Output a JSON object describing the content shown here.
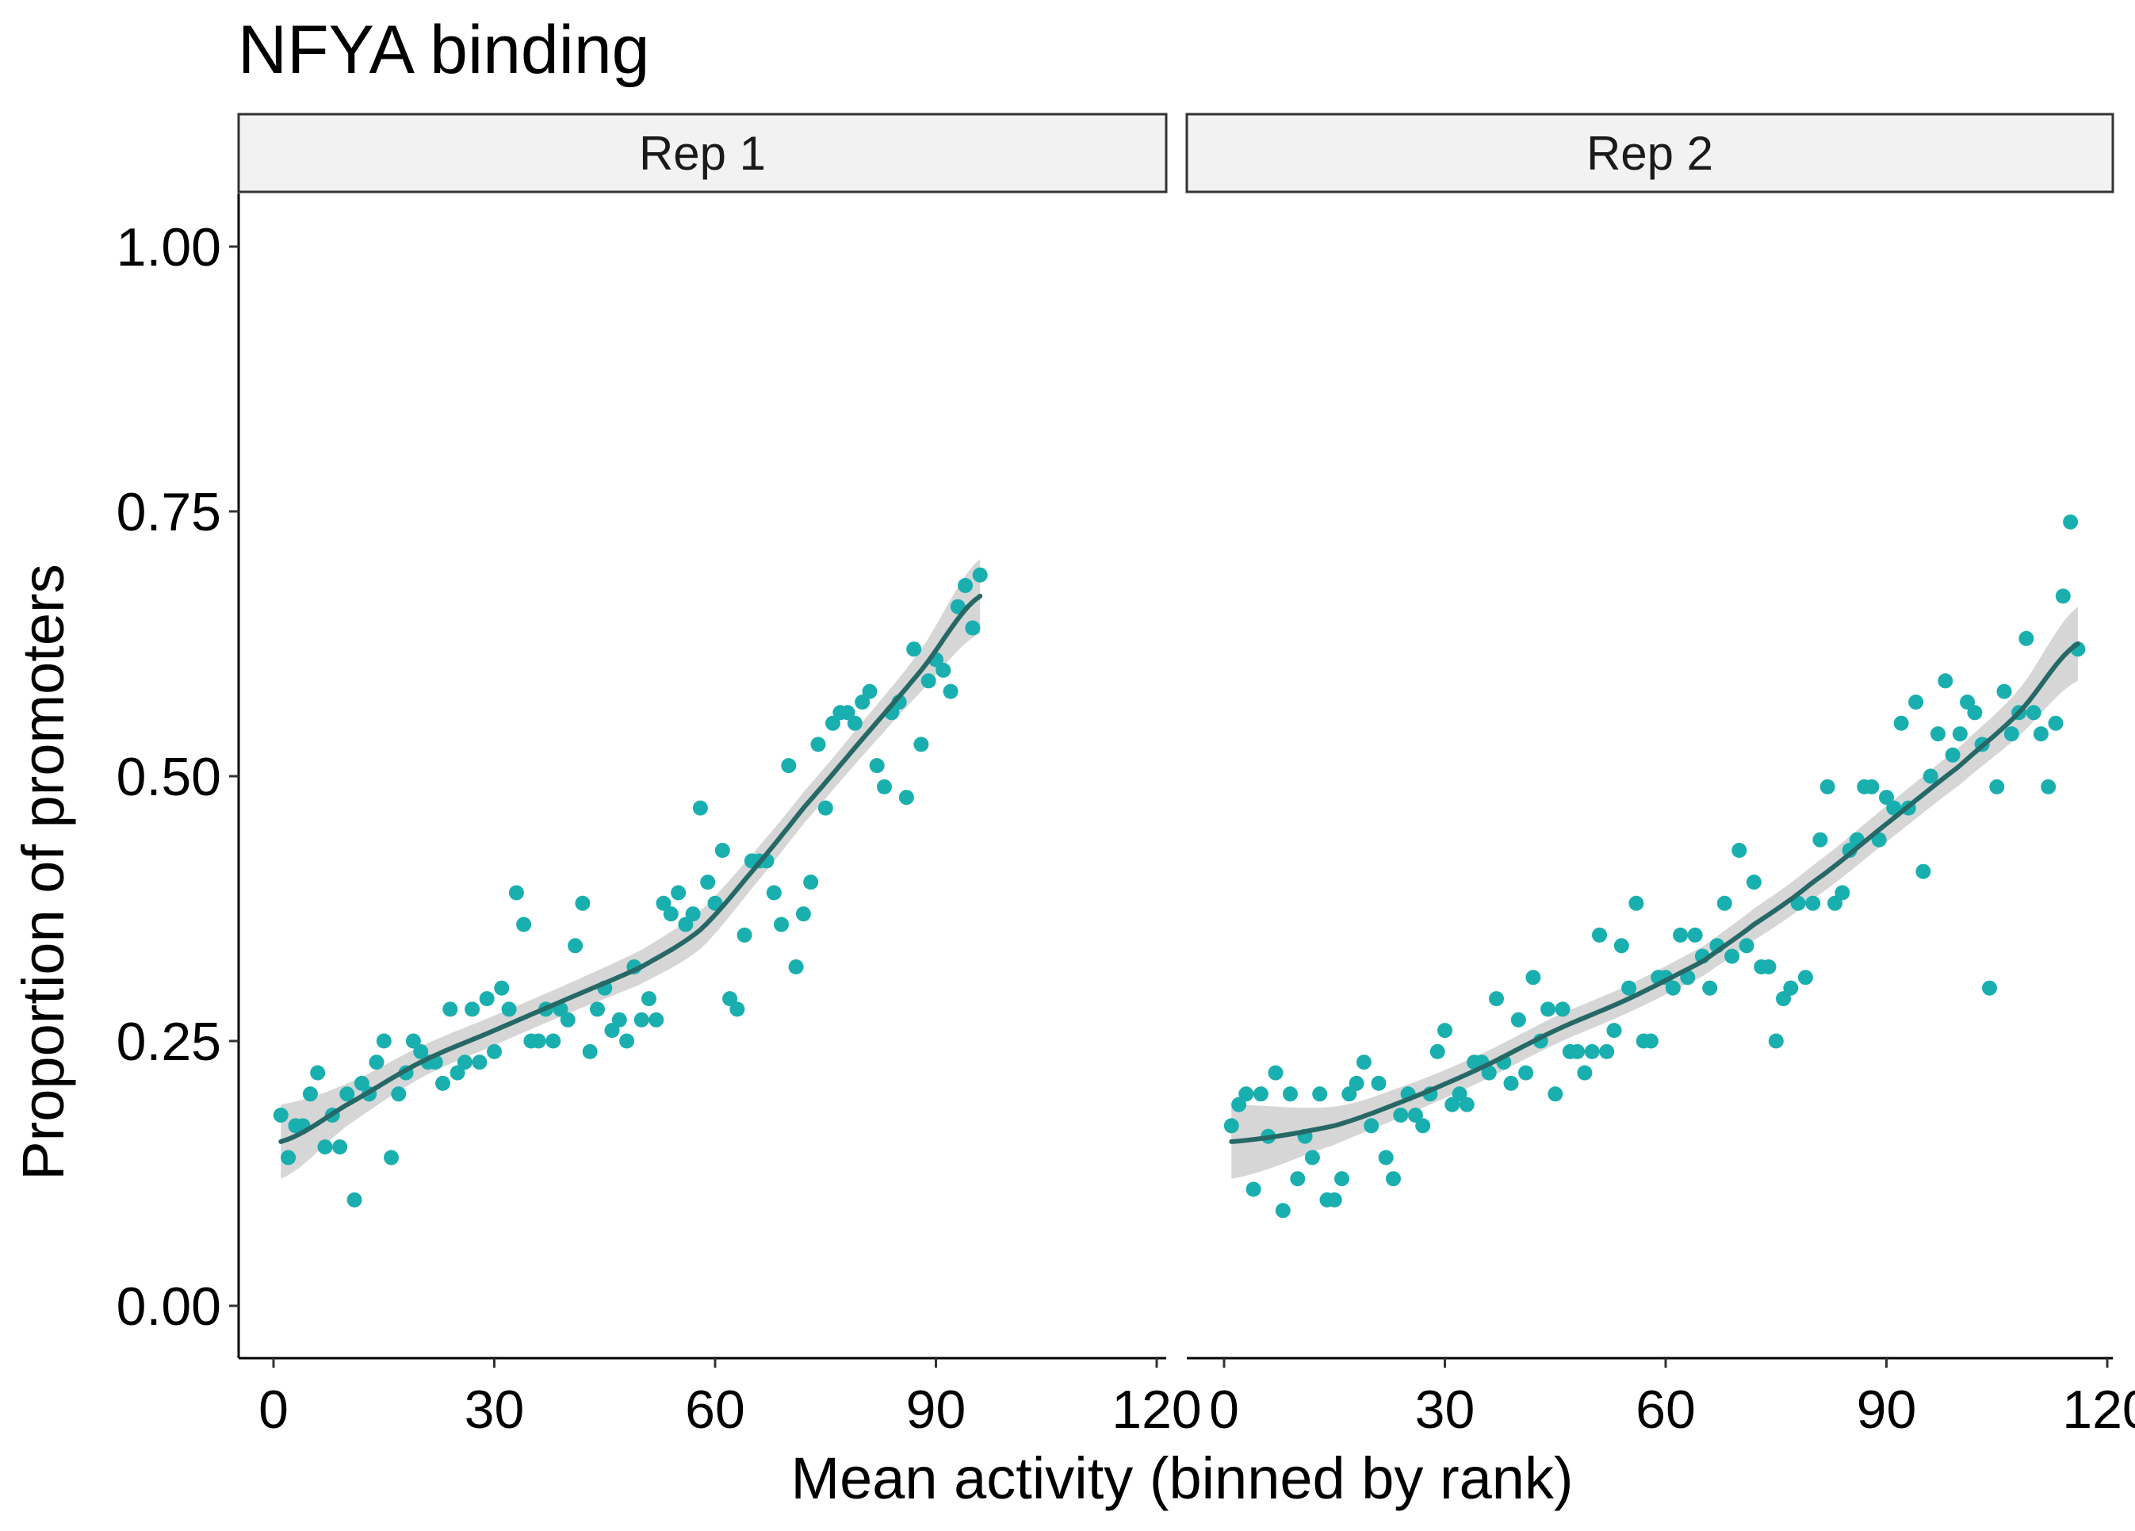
{
  "chart_data": {
    "type": "scatter",
    "title": "NFYA binding",
    "xlabel": "Mean activity (binned by rank)",
    "ylabel": "Proportion of promoters",
    "xlim": [
      -5,
      120
    ],
    "ylim": [
      -0.05,
      1.05
    ],
    "x_ticks": [
      0,
      30,
      60,
      90,
      120
    ],
    "x_tick_labels": [
      "0",
      "30",
      "60",
      "90",
      "120"
    ],
    "y_ticks": [
      0,
      0.25,
      0.5,
      0.75,
      1.0
    ],
    "y_tick_labels": [
      "0.00",
      "0.25",
      "0.50",
      "0.75",
      "1.00"
    ],
    "grid": false,
    "point_color": "#1aafaf",
    "smooth_color": "#266866",
    "ribbon_color": "#c8c8c8",
    "strip_fill": "#f2f2f2",
    "panels": [
      {
        "strip_label": "Rep 1",
        "points": [
          [
            1,
            0.18
          ],
          [
            2,
            0.14
          ],
          [
            3,
            0.17
          ],
          [
            4,
            0.17
          ],
          [
            5,
            0.2
          ],
          [
            6,
            0.22
          ],
          [
            7,
            0.15
          ],
          [
            8,
            0.18
          ],
          [
            9,
            0.15
          ],
          [
            10,
            0.2
          ],
          [
            11,
            0.1
          ],
          [
            12,
            0.21
          ],
          [
            13,
            0.2
          ],
          [
            14,
            0.23
          ],
          [
            15,
            0.25
          ],
          [
            16,
            0.14
          ],
          [
            17,
            0.2
          ],
          [
            18,
            0.22
          ],
          [
            19,
            0.25
          ],
          [
            20,
            0.24
          ],
          [
            21,
            0.23
          ],
          [
            22,
            0.23
          ],
          [
            23,
            0.21
          ],
          [
            24,
            0.28
          ],
          [
            25,
            0.22
          ],
          [
            26,
            0.23
          ],
          [
            27,
            0.28
          ],
          [
            28,
            0.23
          ],
          [
            29,
            0.29
          ],
          [
            30,
            0.24
          ],
          [
            31,
            0.3
          ],
          [
            32,
            0.28
          ],
          [
            33,
            0.39
          ],
          [
            34,
            0.36
          ],
          [
            35,
            0.25
          ],
          [
            36,
            0.25
          ],
          [
            37,
            0.28
          ],
          [
            38,
            0.25
          ],
          [
            39,
            0.28
          ],
          [
            40,
            0.27
          ],
          [
            41,
            0.34
          ],
          [
            42,
            0.38
          ],
          [
            43,
            0.24
          ],
          [
            44,
            0.28
          ],
          [
            45,
            0.3
          ],
          [
            46,
            0.26
          ],
          [
            47,
            0.27
          ],
          [
            48,
            0.25
          ],
          [
            49,
            0.32
          ],
          [
            50,
            0.27
          ],
          [
            51,
            0.29
          ],
          [
            52,
            0.27
          ],
          [
            53,
            0.38
          ],
          [
            54,
            0.37
          ],
          [
            55,
            0.39
          ],
          [
            56,
            0.36
          ],
          [
            57,
            0.37
          ],
          [
            58,
            0.47
          ],
          [
            59,
            0.4
          ],
          [
            60,
            0.38
          ],
          [
            61,
            0.43
          ],
          [
            62,
            0.29
          ],
          [
            63,
            0.28
          ],
          [
            64,
            0.35
          ],
          [
            65,
            0.42
          ],
          [
            66,
            0.42
          ],
          [
            67,
            0.42
          ],
          [
            68,
            0.39
          ],
          [
            69,
            0.36
          ],
          [
            70,
            0.51
          ],
          [
            71,
            0.32
          ],
          [
            72,
            0.37
          ],
          [
            73,
            0.4
          ],
          [
            74,
            0.53
          ],
          [
            75,
            0.47
          ],
          [
            76,
            0.55
          ],
          [
            77,
            0.56
          ],
          [
            78,
            0.56
          ],
          [
            79,
            0.55
          ],
          [
            80,
            0.57
          ],
          [
            81,
            0.58
          ],
          [
            82,
            0.51
          ],
          [
            83,
            0.49
          ],
          [
            84,
            0.56
          ],
          [
            85,
            0.57
          ],
          [
            86,
            0.48
          ],
          [
            87,
            0.62
          ],
          [
            88,
            0.53
          ],
          [
            89,
            0.59
          ],
          [
            90,
            0.61
          ],
          [
            91,
            0.6
          ],
          [
            92,
            0.58
          ],
          [
            93,
            0.66
          ],
          [
            94,
            0.68
          ],
          [
            95,
            0.64
          ],
          [
            96,
            0.69
          ]
        ],
        "smooth": {
          "x": [
            1,
            10,
            20,
            30,
            40,
            50,
            58,
            65,
            72,
            80,
            88,
            96
          ],
          "y": [
            0.155,
            0.19,
            0.23,
            0.26,
            0.29,
            0.32,
            0.355,
            0.41,
            0.47,
            0.535,
            0.6,
            0.67
          ],
          "band_half_width": [
            0.035,
            0.02,
            0.015,
            0.014,
            0.014,
            0.016,
            0.018,
            0.016,
            0.015,
            0.016,
            0.02,
            0.035
          ]
        }
      },
      {
        "strip_label": "Rep 2",
        "points": [
          [
            1,
            0.17
          ],
          [
            2,
            0.19
          ],
          [
            3,
            0.2
          ],
          [
            4,
            0.11
          ],
          [
            5,
            0.2
          ],
          [
            6,
            0.16
          ],
          [
            7,
            0.22
          ],
          [
            8,
            0.09
          ],
          [
            9,
            0.2
          ],
          [
            10,
            0.12
          ],
          [
            11,
            0.16
          ],
          [
            12,
            0.14
          ],
          [
            13,
            0.2
          ],
          [
            14,
            0.1
          ],
          [
            15,
            0.1
          ],
          [
            16,
            0.12
          ],
          [
            17,
            0.2
          ],
          [
            18,
            0.21
          ],
          [
            19,
            0.23
          ],
          [
            20,
            0.17
          ],
          [
            21,
            0.21
          ],
          [
            22,
            0.14
          ],
          [
            23,
            0.12
          ],
          [
            24,
            0.18
          ],
          [
            25,
            0.2
          ],
          [
            26,
            0.18
          ],
          [
            27,
            0.17
          ],
          [
            28,
            0.2
          ],
          [
            29,
            0.24
          ],
          [
            30,
            0.26
          ],
          [
            31,
            0.19
          ],
          [
            32,
            0.2
          ],
          [
            33,
            0.19
          ],
          [
            34,
            0.23
          ],
          [
            35,
            0.23
          ],
          [
            36,
            0.22
          ],
          [
            37,
            0.29
          ],
          [
            38,
            0.23
          ],
          [
            39,
            0.21
          ],
          [
            40,
            0.27
          ],
          [
            41,
            0.22
          ],
          [
            42,
            0.31
          ],
          [
            43,
            0.25
          ],
          [
            44,
            0.28
          ],
          [
            45,
            0.2
          ],
          [
            46,
            0.28
          ],
          [
            47,
            0.24
          ],
          [
            48,
            0.24
          ],
          [
            49,
            0.22
          ],
          [
            50,
            0.24
          ],
          [
            51,
            0.35
          ],
          [
            52,
            0.24
          ],
          [
            53,
            0.26
          ],
          [
            54,
            0.34
          ],
          [
            55,
            0.3
          ],
          [
            56,
            0.38
          ],
          [
            57,
            0.25
          ],
          [
            58,
            0.25
          ],
          [
            59,
            0.31
          ],
          [
            60,
            0.31
          ],
          [
            61,
            0.3
          ],
          [
            62,
            0.35
          ],
          [
            63,
            0.31
          ],
          [
            64,
            0.35
          ],
          [
            65,
            0.33
          ],
          [
            66,
            0.3
          ],
          [
            67,
            0.34
          ],
          [
            68,
            0.38
          ],
          [
            69,
            0.33
          ],
          [
            70,
            0.43
          ],
          [
            71,
            0.34
          ],
          [
            72,
            0.4
          ],
          [
            73,
            0.32
          ],
          [
            74,
            0.32
          ],
          [
            75,
            0.25
          ],
          [
            76,
            0.29
          ],
          [
            77,
            0.3
          ],
          [
            78,
            0.38
          ],
          [
            79,
            0.31
          ],
          [
            80,
            0.38
          ],
          [
            81,
            0.44
          ],
          [
            82,
            0.49
          ],
          [
            83,
            0.38
          ],
          [
            84,
            0.39
          ],
          [
            85,
            0.43
          ],
          [
            86,
            0.44
          ],
          [
            87,
            0.49
          ],
          [
            88,
            0.49
          ],
          [
            89,
            0.44
          ],
          [
            90,
            0.48
          ],
          [
            91,
            0.47
          ],
          [
            92,
            0.55
          ],
          [
            93,
            0.47
          ],
          [
            94,
            0.57
          ],
          [
            95,
            0.41
          ],
          [
            96,
            0.5
          ],
          [
            97,
            0.54
          ],
          [
            98,
            0.59
          ],
          [
            99,
            0.52
          ],
          [
            100,
            0.54
          ],
          [
            101,
            0.57
          ],
          [
            102,
            0.56
          ],
          [
            103,
            0.53
          ],
          [
            104,
            0.3
          ],
          [
            105,
            0.49
          ],
          [
            106,
            0.58
          ],
          [
            107,
            0.54
          ],
          [
            108,
            0.56
          ],
          [
            109,
            0.63
          ],
          [
            110,
            0.56
          ],
          [
            111,
            0.54
          ],
          [
            112,
            0.49
          ],
          [
            113,
            0.55
          ],
          [
            114,
            0.67
          ],
          [
            115,
            0.74
          ],
          [
            116,
            0.62
          ]
        ],
        "smooth": {
          "x": [
            1,
            15,
            25,
            35,
            45,
            55,
            65,
            72,
            80,
            90,
            100,
            108,
            116
          ],
          "y": [
            0.155,
            0.17,
            0.195,
            0.225,
            0.26,
            0.29,
            0.325,
            0.36,
            0.4,
            0.455,
            0.51,
            0.56,
            0.625
          ],
          "band_half_width": [
            0.035,
            0.018,
            0.014,
            0.013,
            0.013,
            0.013,
            0.014,
            0.015,
            0.016,
            0.017,
            0.018,
            0.022,
            0.035
          ]
        }
      }
    ]
  }
}
